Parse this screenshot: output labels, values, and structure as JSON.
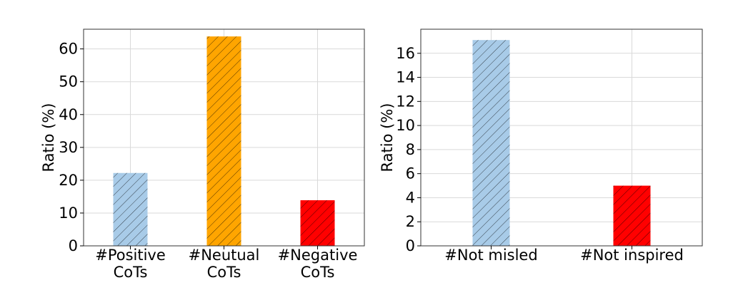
{
  "chart_data": [
    {
      "type": "bar",
      "title": "",
      "xlabel": "",
      "ylabel": "Ratio (%)",
      "ylim": [
        0,
        66
      ],
      "yticks": [
        0,
        10,
        20,
        30,
        40,
        50,
        60
      ],
      "grid": true,
      "categories": [
        [
          "#Positive",
          "CoTs"
        ],
        [
          "#Neutual",
          "CoTs"
        ],
        [
          "#Negative",
          "CoTs"
        ]
      ],
      "values": [
        22.2,
        63.8,
        13.9
      ],
      "colors": [
        "#a8cbe8",
        "#ffa500",
        "#ff0000"
      ],
      "hatch": "diagonal"
    },
    {
      "type": "bar",
      "title": "",
      "xlabel": "",
      "ylabel": "Ratio (%)",
      "ylim": [
        0,
        18
      ],
      "yticks": [
        0,
        2,
        4,
        6,
        8,
        10,
        12,
        14,
        16
      ],
      "grid": true,
      "categories": [
        [
          "#Not misled"
        ],
        [
          "#Not inspired"
        ]
      ],
      "values": [
        17.1,
        5.0
      ],
      "colors": [
        "#a8cbe8",
        "#ff0000"
      ],
      "hatch": "diagonal"
    }
  ]
}
